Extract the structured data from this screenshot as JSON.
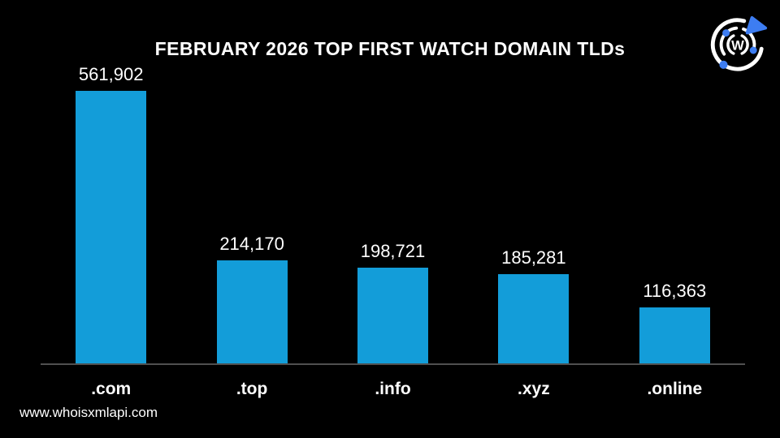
{
  "page": {
    "background_color": "#000000",
    "watermark": "www.whoisxmlapi.com"
  },
  "header": {
    "title": "FEBRUARY 2026 TOP FIRST WATCH DOMAIN TLDs"
  },
  "logo": {
    "name": "whoisxmlapi-logo",
    "letter": "W",
    "ring_color": "#ffffff",
    "accent_color": "#3d7df2"
  },
  "chart_data": {
    "type": "bar",
    "title": "FEBRUARY 2026 TOP FIRST WATCH DOMAIN TLDs",
    "categories": [
      ".com",
      ".top",
      ".info",
      ".xyz",
      ".online"
    ],
    "values": [
      561902,
      214170,
      198721,
      185281,
      116363
    ],
    "value_labels": [
      "561,902",
      "214,170",
      "198,721",
      "185,281",
      "116,363"
    ],
    "xlabel": "",
    "ylabel": "",
    "ylim": [
      0,
      580000
    ],
    "bar_color": "#139dd9",
    "axis_line_color": "#4f4f4f",
    "text_color": "#ffffff",
    "grid": false,
    "legend": false
  }
}
